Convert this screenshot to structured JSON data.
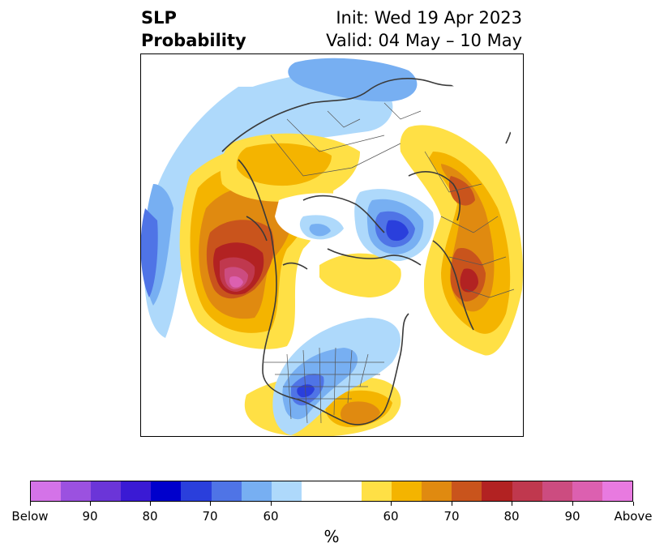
{
  "title": {
    "left_line1": "SLP",
    "left_line2": "Probability",
    "right_line1": "Init: Wed 19 Apr 2023",
    "right_line2": "Valid: 04 May – 10 May"
  },
  "map": {
    "projection": "polar stereographic (Northern Hemisphere)",
    "features": [
      "coastlines",
      "country borders",
      "US state borders"
    ],
    "anomaly_regions": [
      {
        "label": "north-pacific-above",
        "category": "above",
        "peak_percent": 90
      },
      {
        "label": "western-europe-above",
        "category": "above",
        "peak_percent": 80
      },
      {
        "label": "siberia-above",
        "category": "above",
        "peak_percent": 70
      },
      {
        "label": "north-atlantic-above",
        "category": "above",
        "peak_percent": 70
      },
      {
        "label": "central-us-below",
        "category": "below",
        "peak_percent": 70
      },
      {
        "label": "barents-kara-below",
        "category": "below",
        "peak_percent": 80
      },
      {
        "label": "pacific-rim-below",
        "category": "below",
        "peak_percent": 70
      },
      {
        "label": "arctic-below",
        "category": "below",
        "peak_percent": 60
      }
    ]
  },
  "colorbar": {
    "segments": [
      {
        "color": "#d473e8"
      },
      {
        "color": "#9b51e0"
      },
      {
        "color": "#6b35d8"
      },
      {
        "color": "#3a1ad4"
      },
      {
        "color": "#0000cc"
      },
      {
        "color": "#2a3fdc"
      },
      {
        "color": "#4f74e6"
      },
      {
        "color": "#77aff2"
      },
      {
        "color": "#aed9fb"
      },
      {
        "color": "#ffffff",
        "wide": true
      },
      {
        "color": "#ffe045"
      },
      {
        "color": "#f4b400"
      },
      {
        "color": "#e08a10"
      },
      {
        "color": "#c9541c"
      },
      {
        "color": "#b22222"
      },
      {
        "color": "#c0384e"
      },
      {
        "color": "#cc4c80"
      },
      {
        "color": "#dc60b0"
      },
      {
        "color": "#e87ae0"
      }
    ],
    "tick_labels": [
      "Below",
      "90",
      "80",
      "70",
      "60",
      "60",
      "70",
      "80",
      "90",
      "Above"
    ],
    "units": "%"
  }
}
